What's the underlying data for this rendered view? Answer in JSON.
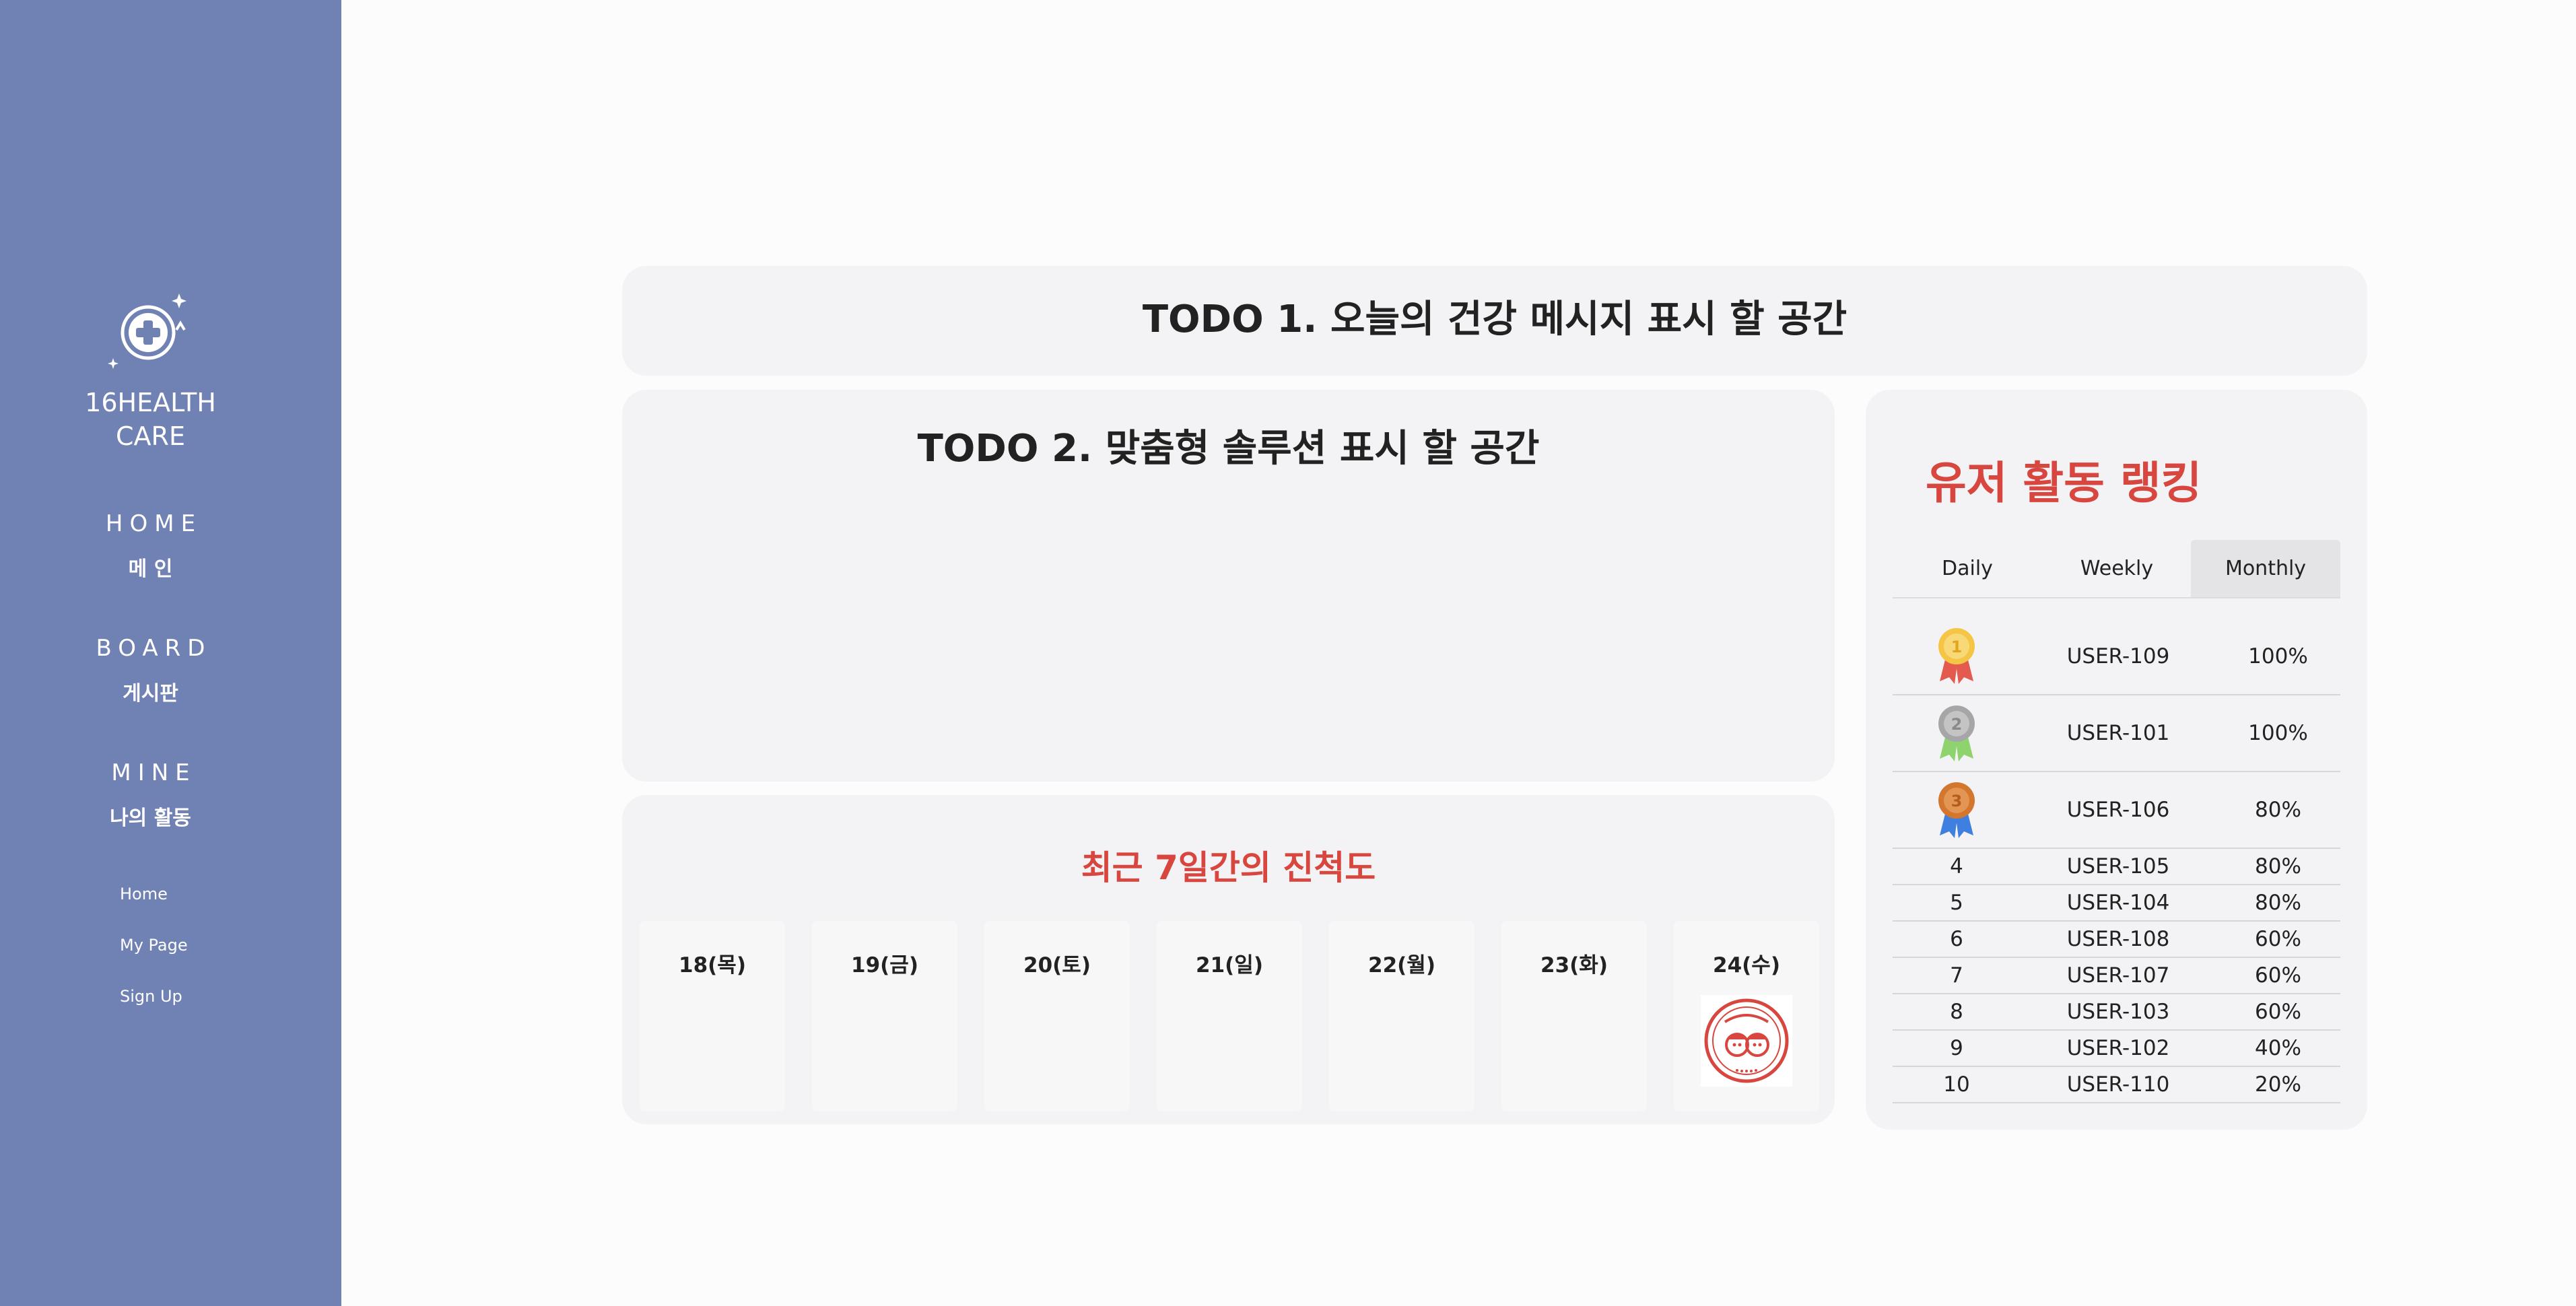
{
  "sidebar": {
    "brand": "16HEALTH CARE",
    "nav": [
      {
        "en": "HOME",
        "ko": "메 인"
      },
      {
        "en": "BOARD",
        "ko": "게시판"
      },
      {
        "en": "MINE",
        "ko": "나의 활동"
      }
    ],
    "links": [
      "Home",
      "My Page",
      "Sign Up"
    ],
    "logo_icon": "medical-cross-icon"
  },
  "todo1": {
    "title": "TODO 1. 오늘의 건강 메시지 표시 할 공간"
  },
  "todo2": {
    "title": "TODO 2. 맞춤형 솔루션 표시 할 공간"
  },
  "progress": {
    "title": "최근 7일간의 진척도",
    "days": [
      {
        "label": "18(목)",
        "stamped": false
      },
      {
        "label": "19(금)",
        "stamped": false
      },
      {
        "label": "20(토)",
        "stamped": false
      },
      {
        "label": "21(일)",
        "stamped": false
      },
      {
        "label": "22(월)",
        "stamped": false
      },
      {
        "label": "23(화)",
        "stamped": false
      },
      {
        "label": "24(수)",
        "stamped": true
      }
    ]
  },
  "ranking": {
    "title": "유저 활동 랭킹",
    "tabs": [
      "Daily",
      "Weekly",
      "Monthly"
    ],
    "active_tab": "Monthly",
    "rows": [
      {
        "rank": "1",
        "user": "USER-109",
        "pct": "100%",
        "medal": "gold"
      },
      {
        "rank": "2",
        "user": "USER-101",
        "pct": "100%",
        "medal": "silver"
      },
      {
        "rank": "3",
        "user": "USER-106",
        "pct": "80%",
        "medal": "bronze"
      },
      {
        "rank": "4",
        "user": "USER-105",
        "pct": "80%"
      },
      {
        "rank": "5",
        "user": "USER-104",
        "pct": "80%"
      },
      {
        "rank": "6",
        "user": "USER-108",
        "pct": "60%"
      },
      {
        "rank": "7",
        "user": "USER-107",
        "pct": "60%"
      },
      {
        "rank": "8",
        "user": "USER-103",
        "pct": "60%"
      },
      {
        "rank": "9",
        "user": "USER-102",
        "pct": "40%"
      },
      {
        "rank": "10",
        "user": "USER-110",
        "pct": "20%"
      }
    ]
  },
  "colors": {
    "sidebar": "#7082b4",
    "accent": "#d8473f",
    "card": "#f3f3f5"
  }
}
